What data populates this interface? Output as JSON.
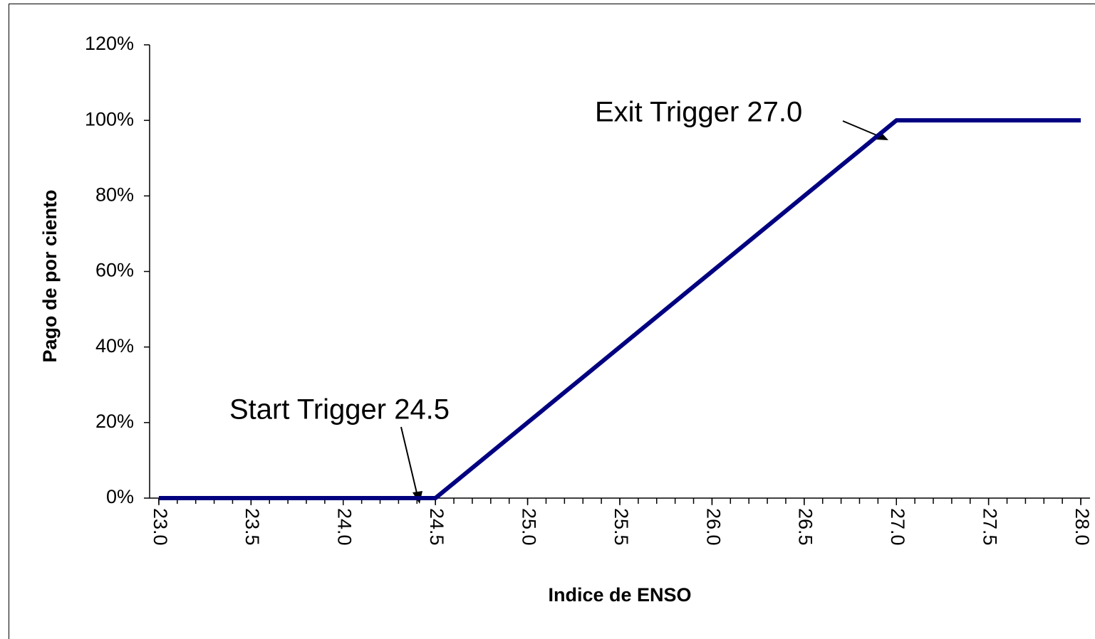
{
  "chart_data": {
    "type": "line",
    "x_label": "Indice de ENSO",
    "y_label": "Pago de por ciento",
    "x": [
      23.0,
      23.1,
      23.2,
      23.3,
      23.4,
      23.5,
      23.6,
      23.7,
      23.8,
      23.9,
      24.0,
      24.1,
      24.2,
      24.3,
      24.4,
      24.5,
      24.6,
      24.7,
      24.8,
      24.9,
      25.0,
      25.1,
      25.2,
      25.3,
      25.4,
      25.5,
      25.6,
      25.7,
      25.8,
      25.9,
      26.0,
      26.1,
      26.2,
      26.3,
      26.4,
      26.5,
      26.6,
      26.7,
      26.8,
      26.9,
      27.0,
      27.1,
      27.2,
      27.3,
      27.4,
      27.5,
      27.6,
      27.7,
      27.8,
      27.9,
      28.0
    ],
    "series": [
      {
        "name": "Pago",
        "color": "#000080",
        "values": [
          0,
          0,
          0,
          0,
          0,
          0,
          0,
          0,
          0,
          0,
          0,
          0,
          0,
          0,
          0,
          0,
          4,
          8,
          12,
          16,
          20,
          24,
          28,
          32,
          36,
          40,
          44,
          48,
          52,
          56,
          60,
          64,
          68,
          72,
          76,
          80,
          84,
          88,
          92,
          96,
          100,
          100,
          100,
          100,
          100,
          100,
          100,
          100,
          100,
          100,
          100
        ]
      }
    ],
    "xlim": [
      22.95,
      28.05
    ],
    "xticks": [
      {
        "value": 23.0,
        "label": "23.0"
      },
      {
        "value": 23.5,
        "label": "23.5"
      },
      {
        "value": 24.0,
        "label": "24.0"
      },
      {
        "value": 24.5,
        "label": "24.5"
      },
      {
        "value": 25.0,
        "label": "25.0"
      },
      {
        "value": 25.5,
        "label": "25.5"
      },
      {
        "value": 26.0,
        "label": "26.0"
      },
      {
        "value": 26.5,
        "label": "26.5"
      },
      {
        "value": 27.0,
        "label": "27.0"
      },
      {
        "value": 27.5,
        "label": "27.5"
      },
      {
        "value": 28.0,
        "label": "28.0"
      }
    ],
    "ylim": [
      0,
      120
    ],
    "yticks": [
      {
        "value": 0,
        "label": "0%"
      },
      {
        "value": 20,
        "label": "20%"
      },
      {
        "value": 40,
        "label": "40%"
      },
      {
        "value": 60,
        "label": "60%"
      },
      {
        "value": 80,
        "label": "80%"
      },
      {
        "value": 100,
        "label": "100%"
      },
      {
        "value": 120,
        "label": "120%"
      }
    ],
    "annotations": [
      "Exit Trigger 27.0",
      "Start Trigger 24.5"
    ]
  }
}
